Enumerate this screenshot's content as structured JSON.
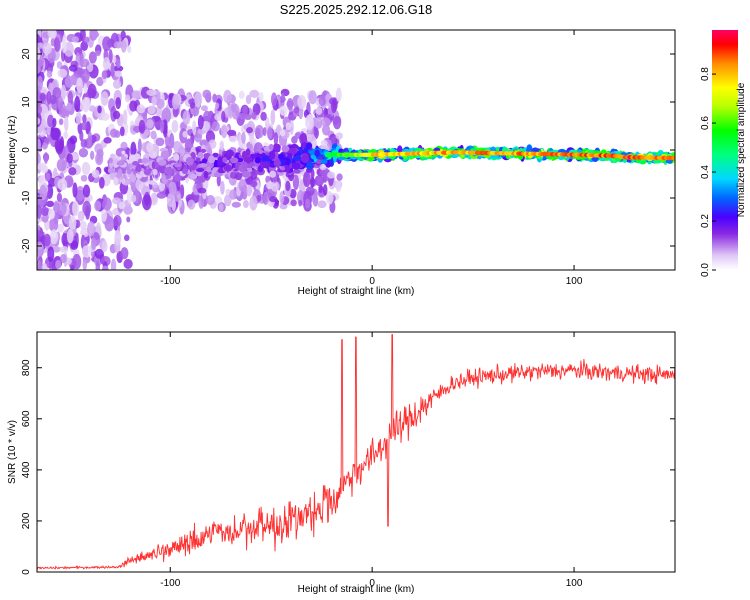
{
  "title": "S225.2025.292.12.06.G18",
  "chart_data": [
    {
      "type": "heatmap",
      "name": "spectrogram",
      "xlabel": "Height of straight line (km)",
      "ylabel": "Frequency (Hz)",
      "xlim": [
        -166,
        150
      ],
      "ylim": [
        -25,
        25
      ],
      "xticks": [
        -100,
        0,
        100
      ],
      "yticks": [
        -20,
        -10,
        0,
        10,
        20
      ],
      "colorbar": {
        "label": "Normalized spectral amplitude",
        "range": [
          0,
          0.98
        ],
        "ticks": [
          0.0,
          0.2,
          0.4,
          0.6,
          0.8
        ]
      },
      "ridge": {
        "description_points_x": [
          -166,
          -120,
          -80,
          -40,
          -20,
          0,
          40,
          80,
          120,
          125,
          150
        ],
        "frequency": [
          0,
          -4,
          -3,
          -2,
          -1,
          -1,
          -0.5,
          -0.8,
          -1.2,
          -1.5,
          -1.7
        ],
        "peak_amplitude": [
          0.05,
          0.15,
          0.25,
          0.3,
          0.6,
          0.85,
          0.9,
          0.92,
          0.95,
          0.98,
          0.9
        ]
      }
    },
    {
      "type": "line",
      "name": "snr",
      "xlabel": "Height of straight line (km)",
      "ylabel": "SNR (10 * v/v)",
      "xlim": [
        -166,
        150
      ],
      "ylim": [
        0,
        940
      ],
      "xticks": [
        -100,
        0,
        100
      ],
      "yticks": [
        0,
        200,
        400,
        600,
        800
      ],
      "color": "#ff3030",
      "trend": {
        "x": [
          -166,
          -125,
          -120,
          -100,
          -80,
          -60,
          -40,
          -20,
          -15,
          -10,
          0,
          10,
          20,
          30,
          40,
          50,
          60,
          80,
          100,
          120,
          150
        ],
        "y": [
          15,
          20,
          40,
          80,
          140,
          150,
          180,
          260,
          330,
          380,
          450,
          540,
          610,
          680,
          740,
          760,
          770,
          785,
          790,
          780,
          770
        ]
      },
      "spikes": [
        {
          "x": -15,
          "y": 910
        },
        {
          "x": -8,
          "y": 920
        },
        {
          "x": 10,
          "y": 930
        },
        {
          "x": 8,
          "y": 180
        }
      ]
    }
  ]
}
